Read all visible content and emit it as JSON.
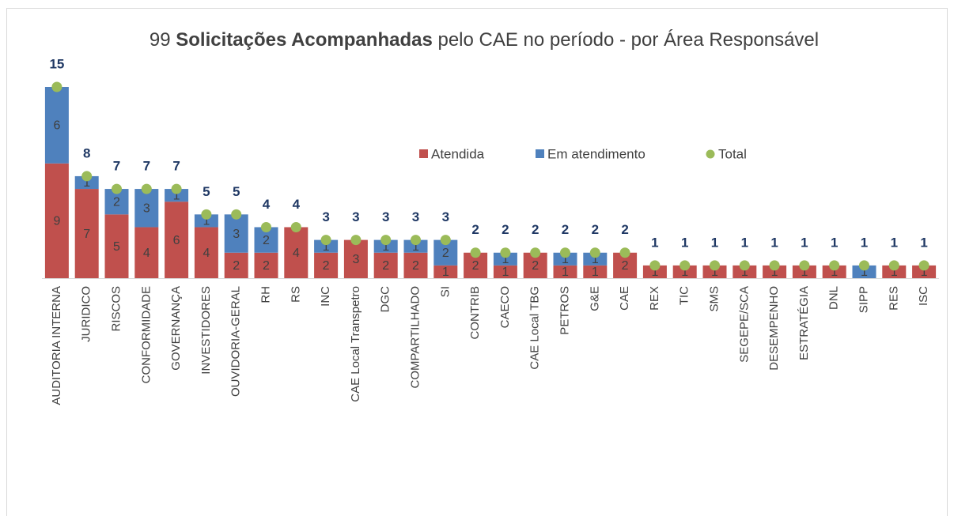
{
  "chart_data": {
    "type": "stacked_bar",
    "title_parts": [
      "99 ",
      "Solicitações Acompanhadas",
      " pelo CAE no período - por Área Responsável"
    ],
    "categories": [
      "AUDITORIA INTERNA",
      "JURIDICO",
      "RISCOS",
      "CONFORMIDADE",
      "GOVERNANÇA",
      "INVESTIDORES",
      "OUVIDORIA-GERAL",
      "RH",
      "RS",
      "INC",
      "CAE Local Transpetro",
      "DGC",
      "COMPARTILHADO",
      "SI",
      "CONTRIB",
      "CAECO",
      "CAE Local TBG",
      "PETROS",
      "G&E",
      "CAE",
      "REX",
      "TIC",
      "SMS",
      "SEGEPE/SCA",
      "DESEMPENHO",
      "ESTRATÉGIA",
      "DNL",
      "SIPP",
      "RES",
      "ISC"
    ],
    "series": [
      {
        "name": "Atendida",
        "color": "#c0504d",
        "values": [
          9,
          7,
          5,
          4,
          6,
          4,
          2,
          2,
          4,
          2,
          3,
          2,
          2,
          1,
          2,
          1,
          2,
          1,
          1,
          2,
          1,
          1,
          1,
          1,
          1,
          1,
          1,
          null,
          1,
          1
        ]
      },
      {
        "name": "Em atendimento",
        "color": "#4f81bd",
        "values": [
          6,
          1,
          2,
          3,
          1,
          1,
          3,
          2,
          null,
          1,
          null,
          1,
          1,
          2,
          null,
          1,
          null,
          1,
          1,
          null,
          null,
          null,
          null,
          null,
          null,
          null,
          null,
          1,
          null,
          null
        ]
      }
    ],
    "total": {
      "name": "Total",
      "color": "#9bbb59",
      "values": [
        15,
        8,
        7,
        7,
        7,
        5,
        5,
        4,
        4,
        3,
        3,
        3,
        3,
        3,
        2,
        2,
        2,
        2,
        2,
        2,
        1,
        1,
        1,
        1,
        1,
        1,
        1,
        1,
        1,
        1
      ]
    },
    "ylim": [
      0,
      15
    ]
  }
}
